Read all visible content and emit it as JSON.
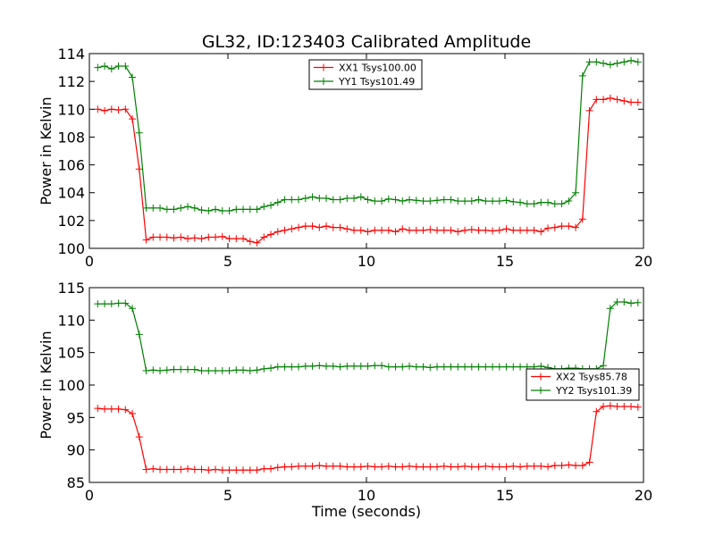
{
  "figure": {
    "title": "GL32, ID:123403 Calibrated Amplitude",
    "xlabel": "Time (seconds)"
  },
  "chart_data": [
    {
      "type": "line",
      "ylabel": "Power in Kelvin",
      "xlim": [
        0,
        20
      ],
      "ylim": [
        100,
        114
      ],
      "xticks": [
        "0",
        "5",
        "10",
        "15",
        "20"
      ],
      "yticks": [
        "100",
        "102",
        "104",
        "106",
        "108",
        "110",
        "112",
        "114"
      ],
      "grid": false,
      "legend_position": "top-center",
      "x": [
        0.3,
        0.55,
        0.8,
        1.05,
        1.3,
        1.55,
        1.8,
        2.05,
        2.3,
        2.55,
        2.8,
        3.05,
        3.3,
        3.55,
        3.8,
        4.05,
        4.3,
        4.55,
        4.8,
        5.05,
        5.3,
        5.55,
        5.8,
        6.05,
        6.3,
        6.55,
        6.8,
        7.05,
        7.3,
        7.55,
        7.8,
        8.05,
        8.3,
        8.55,
        8.8,
        9.05,
        9.3,
        9.55,
        9.8,
        10.05,
        10.3,
        10.55,
        10.8,
        11.05,
        11.3,
        11.55,
        11.8,
        12.05,
        12.3,
        12.55,
        12.8,
        13.05,
        13.3,
        13.55,
        13.8,
        14.05,
        14.3,
        14.55,
        14.8,
        15.05,
        15.3,
        15.55,
        15.8,
        16.05,
        16.3,
        16.55,
        16.8,
        17.05,
        17.3,
        17.55,
        17.8,
        18.05,
        18.3,
        18.55,
        18.8,
        19.05,
        19.3,
        19.55,
        19.8
      ],
      "series": [
        {
          "name": "XX1 Tsys100.00",
          "color": "#ff0000",
          "values": [
            110.0,
            109.9,
            110.0,
            109.95,
            110.0,
            109.3,
            105.7,
            100.6,
            100.8,
            100.8,
            100.8,
            100.75,
            100.8,
            100.7,
            100.75,
            100.7,
            100.8,
            100.8,
            100.85,
            100.7,
            100.7,
            100.7,
            100.5,
            100.4,
            100.8,
            101.0,
            101.2,
            101.3,
            101.4,
            101.5,
            101.6,
            101.6,
            101.5,
            101.6,
            101.5,
            101.5,
            101.4,
            101.3,
            101.3,
            101.2,
            101.3,
            101.3,
            101.3,
            101.2,
            101.4,
            101.3,
            101.3,
            101.3,
            101.35,
            101.3,
            101.3,
            101.3,
            101.2,
            101.3,
            101.35,
            101.3,
            101.3,
            101.25,
            101.3,
            101.4,
            101.3,
            101.3,
            101.3,
            101.3,
            101.2,
            101.45,
            101.5,
            101.6,
            101.6,
            101.5,
            102.1,
            109.9,
            110.7,
            110.7,
            110.8,
            110.7,
            110.6,
            110.5,
            110.5
          ]
        },
        {
          "name": "YY1 Tsys101.49",
          "color": "#008000",
          "values": [
            113.0,
            113.1,
            112.9,
            113.1,
            113.1,
            112.3,
            108.3,
            102.9,
            102.9,
            102.9,
            102.8,
            102.8,
            102.9,
            103.0,
            102.9,
            102.75,
            102.7,
            102.8,
            102.7,
            102.7,
            102.8,
            102.8,
            102.8,
            102.8,
            103.0,
            103.1,
            103.3,
            103.5,
            103.5,
            103.5,
            103.6,
            103.7,
            103.6,
            103.6,
            103.5,
            103.5,
            103.6,
            103.6,
            103.7,
            103.5,
            103.4,
            103.4,
            103.55,
            103.5,
            103.4,
            103.5,
            103.45,
            103.4,
            103.4,
            103.45,
            103.5,
            103.5,
            103.4,
            103.4,
            103.4,
            103.5,
            103.4,
            103.4,
            103.4,
            103.45,
            103.35,
            103.3,
            103.2,
            103.2,
            103.3,
            103.3,
            103.2,
            103.2,
            103.4,
            104.0,
            112.4,
            113.4,
            113.4,
            113.3,
            113.2,
            113.3,
            113.4,
            113.5,
            113.4
          ]
        }
      ]
    },
    {
      "type": "line",
      "ylabel": "Power in Kelvin",
      "xlabel": "Time (seconds)",
      "xlim": [
        0,
        20
      ],
      "ylim": [
        85,
        115
      ],
      "xticks": [
        "0",
        "5",
        "10",
        "15",
        "20"
      ],
      "yticks": [
        "85",
        "90",
        "95",
        "100",
        "105",
        "110",
        "115"
      ],
      "grid": false,
      "legend_position": "center-right",
      "x": [
        0.3,
        0.55,
        0.8,
        1.05,
        1.3,
        1.55,
        1.8,
        2.05,
        2.3,
        2.55,
        2.8,
        3.05,
        3.3,
        3.55,
        3.8,
        4.05,
        4.3,
        4.55,
        4.8,
        5.05,
        5.3,
        5.55,
        5.8,
        6.05,
        6.3,
        6.55,
        6.8,
        7.05,
        7.3,
        7.55,
        7.8,
        8.05,
        8.3,
        8.55,
        8.8,
        9.05,
        9.3,
        9.55,
        9.8,
        10.05,
        10.3,
        10.55,
        10.8,
        11.05,
        11.3,
        11.55,
        11.8,
        12.05,
        12.3,
        12.55,
        12.8,
        13.05,
        13.3,
        13.55,
        13.8,
        14.05,
        14.3,
        14.55,
        14.8,
        15.05,
        15.3,
        15.55,
        15.8,
        16.05,
        16.3,
        16.55,
        16.8,
        17.05,
        17.3,
        17.55,
        17.8,
        18.05,
        18.3,
        18.55,
        18.8,
        19.05,
        19.3,
        19.55,
        19.8
      ],
      "series": [
        {
          "name": "XX2 Tsys85.78",
          "color": "#ff0000",
          "values": [
            96.4,
            96.3,
            96.3,
            96.3,
            96.2,
            95.6,
            92.0,
            87.0,
            87.1,
            87.0,
            87.0,
            87.0,
            87.0,
            87.1,
            87.0,
            87.0,
            86.9,
            87.0,
            86.9,
            86.9,
            86.9,
            86.9,
            86.9,
            86.9,
            87.1,
            87.1,
            87.3,
            87.4,
            87.4,
            87.5,
            87.5,
            87.5,
            87.6,
            87.5,
            87.5,
            87.5,
            87.4,
            87.4,
            87.4,
            87.5,
            87.4,
            87.4,
            87.5,
            87.4,
            87.4,
            87.5,
            87.4,
            87.4,
            87.4,
            87.4,
            87.5,
            87.4,
            87.4,
            87.5,
            87.4,
            87.4,
            87.5,
            87.4,
            87.4,
            87.4,
            87.5,
            87.4,
            87.5,
            87.5,
            87.5,
            87.4,
            87.6,
            87.6,
            87.7,
            87.6,
            87.6,
            88.1,
            95.9,
            96.7,
            96.8,
            96.7,
            96.7,
            96.7,
            96.6
          ]
        },
        {
          "name": "YY2 Tsys101.39",
          "color": "#008000",
          "values": [
            112.5,
            112.5,
            112.5,
            112.6,
            112.6,
            111.8,
            107.8,
            102.2,
            102.3,
            102.2,
            102.3,
            102.4,
            102.4,
            102.4,
            102.4,
            102.2,
            102.2,
            102.2,
            102.2,
            102.2,
            102.3,
            102.3,
            102.2,
            102.3,
            102.5,
            102.6,
            102.8,
            102.8,
            102.8,
            102.8,
            102.9,
            102.9,
            103.0,
            102.9,
            102.9,
            102.8,
            102.9,
            102.9,
            102.9,
            102.9,
            103.0,
            103.0,
            102.8,
            102.8,
            102.8,
            102.9,
            102.8,
            102.8,
            102.7,
            102.8,
            102.8,
            102.8,
            102.8,
            102.8,
            102.8,
            102.8,
            102.8,
            102.8,
            102.8,
            102.8,
            102.8,
            102.8,
            102.8,
            102.8,
            102.9,
            102.7,
            102.5,
            102.5,
            102.6,
            102.6,
            102.5,
            102.5,
            102.5,
            103.0,
            111.8,
            112.8,
            112.8,
            112.6,
            112.7
          ]
        }
      ]
    }
  ]
}
